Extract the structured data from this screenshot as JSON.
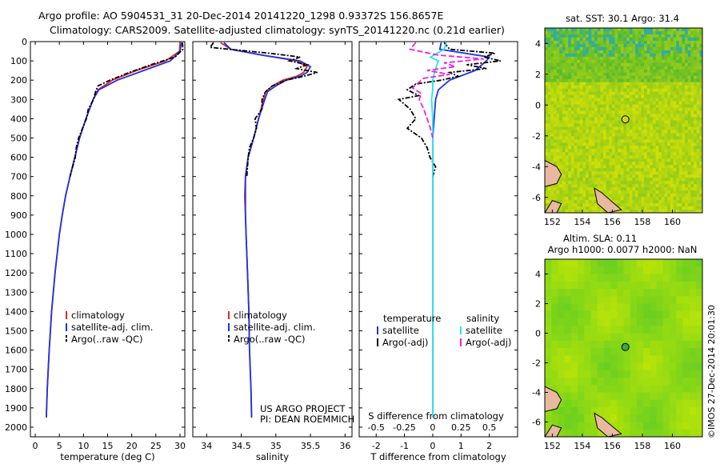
{
  "header": {
    "line1": "Argo profile: AO 5904531_31 20-Dec-2014 20141220_1298 0.93372S 156.8657E",
    "line2": "Climatology: CARS2009. Satellite-adjusted climatology: synTS_20141220.nc (0.21d earlier)"
  },
  "colors": {
    "climatology": "#e8281e",
    "satellite": "#1f32e6",
    "argo": "#000000",
    "sal_satellite": "#22e8ee",
    "sal_argo": "#ee22dd"
  },
  "chart_data": [
    {
      "type": "line",
      "id": "temperature",
      "xlabel": "temperature (deg C)",
      "ylabel": "",
      "xlim": [
        -1,
        31
      ],
      "ylim": [
        2050,
        0
      ],
      "xticks": [
        0,
        5,
        10,
        15,
        20,
        25,
        30
      ],
      "yticks": [
        0,
        100,
        200,
        300,
        400,
        500,
        600,
        700,
        800,
        900,
        1000,
        1100,
        1200,
        1300,
        1400,
        1500,
        1600,
        1700,
        1800,
        1900,
        2000
      ],
      "legend": [
        "climatology",
        "satellite-adj. clim.",
        "Argo(..raw -QC)"
      ],
      "series": [
        {
          "name": "climatology",
          "depth": [
            5,
            50,
            100,
            150,
            200,
            250,
            300,
            400,
            500,
            600,
            700,
            800,
            900,
            1000,
            1200,
            1400,
            1600,
            1800,
            1950
          ],
          "values": [
            30.0,
            29.9,
            27.0,
            21.0,
            16.0,
            13.0,
            12.0,
            10.5,
            9.2,
            8.2,
            7.2,
            6.3,
            5.6,
            5.0,
            4.1,
            3.4,
            2.9,
            2.5,
            2.3
          ]
        },
        {
          "name": "satellite-adj. clim.",
          "depth": [
            5,
            50,
            100,
            150,
            200,
            250,
            300,
            400,
            500,
            600,
            700,
            800,
            900,
            1000,
            1200,
            1400,
            1600,
            1800,
            1950
          ],
          "values": [
            30.3,
            30.0,
            28.0,
            22.5,
            17.0,
            13.2,
            12.0,
            10.5,
            9.2,
            8.2,
            7.2,
            6.3,
            5.6,
            5.0,
            4.1,
            3.4,
            2.9,
            2.5,
            2.3
          ]
        },
        {
          "name": "Argo(..raw -QC)",
          "depth": [
            5,
            40,
            80,
            120,
            160,
            200,
            230,
            260,
            300,
            350,
            400,
            450,
            500,
            550,
            600,
            700
          ],
          "values": [
            30.5,
            30.6,
            29.0,
            24.0,
            19.5,
            15.5,
            13.0,
            12.5,
            12.1,
            11.0,
            10.6,
            9.8,
            9.0,
            8.5,
            8.3,
            7.2
          ]
        }
      ]
    },
    {
      "type": "line",
      "id": "salinity",
      "xlabel": "salinity",
      "xlim": [
        33.8,
        36.1
      ],
      "ylim": [
        2050,
        0
      ],
      "xticks": [
        34,
        34.5,
        35,
        35.5,
        36
      ],
      "legend": [
        "climatology",
        "satellite-adj. clim.",
        "Argo(..raw -QC)"
      ],
      "series": [
        {
          "name": "climatology",
          "depth": [
            5,
            40,
            70,
            100,
            130,
            160,
            180,
            200,
            230,
            260,
            300,
            400,
            500,
            600,
            700,
            800,
            900,
            1000,
            1200,
            1400,
            1600,
            1800,
            1950
          ],
          "values": [
            34.2,
            34.35,
            34.8,
            35.3,
            35.45,
            35.4,
            35.3,
            35.1,
            34.95,
            34.85,
            34.82,
            34.75,
            34.68,
            34.6,
            34.56,
            34.55,
            34.56,
            34.57,
            34.59,
            34.61,
            34.62,
            34.64,
            34.65
          ]
        },
        {
          "name": "satellite-adj. clim.",
          "depth": [
            5,
            40,
            70,
            100,
            130,
            160,
            180,
            200,
            230,
            260,
            300,
            400,
            500,
            600,
            700,
            800,
            900,
            1000,
            1200,
            1400,
            1600,
            1800,
            1950
          ],
          "values": [
            34.25,
            34.35,
            34.8,
            35.35,
            35.5,
            35.45,
            35.35,
            35.15,
            35.0,
            34.88,
            34.84,
            34.75,
            34.68,
            34.6,
            34.56,
            34.56,
            34.56,
            34.57,
            34.59,
            34.61,
            34.62,
            34.64,
            34.65
          ]
        },
        {
          "name": "Argo(..raw -QC)",
          "depth": [
            5,
            30,
            60,
            80,
            100,
            120,
            140,
            160,
            180,
            200,
            230,
            260,
            300,
            350,
            400,
            450,
            500,
            550,
            600,
            700
          ],
          "values": [
            34.1,
            34.05,
            34.9,
            35.35,
            35.2,
            35.45,
            35.3,
            35.6,
            35.4,
            35.15,
            34.95,
            34.85,
            34.8,
            34.8,
            34.7,
            34.72,
            34.68,
            34.62,
            34.6,
            34.58
          ]
        }
      ],
      "annotation": [
        "US ARGO PROJECT",
        "PI: DEAN ROEMMICH"
      ]
    },
    {
      "type": "line",
      "id": "difference",
      "xlabel": "T difference from climatology",
      "xlabel_top": "S difference from climatology",
      "xlim": [
        -2.6,
        3.0
      ],
      "ylim": [
        2050,
        0
      ],
      "xticks": [
        -2,
        -1,
        0,
        1,
        2
      ],
      "xticks_top_values": [
        -0.5,
        -0.25,
        0,
        0.25,
        0.5
      ],
      "xticks_top_labels": [
        "-0.5",
        "-0.25",
        "0",
        "0.25",
        "0.5"
      ],
      "legend_groups": [
        "temperature",
        "salinity"
      ],
      "legend": [
        "satellite",
        "Argo(-adj)",
        "satellite",
        "Argo(-adj)"
      ],
      "series": [
        {
          "name": "temperature satellite",
          "depth": [
            5,
            40,
            80,
            100,
            150,
            200,
            250,
            300,
            400,
            500,
            600,
            700,
            800,
            1000,
            1200,
            1400,
            1600,
            1800,
            1950
          ],
          "values": [
            0.3,
            0.25,
            2.0,
            1.9,
            1.5,
            0.6,
            0.2,
            0.1,
            0.05,
            0.0,
            0.0,
            0.0,
            0.0,
            0.0,
            0.0,
            0.0,
            0.0,
            0.0,
            0.0
          ]
        },
        {
          "name": "temperature Argo(-adj)",
          "depth": [
            5,
            40,
            60,
            80,
            100,
            120,
            140,
            160,
            180,
            200,
            220,
            250,
            280,
            300,
            350,
            400,
            450,
            500,
            550,
            600,
            650,
            700
          ],
          "values": [
            0.4,
            0.6,
            2.2,
            1.8,
            2.4,
            1.2,
            1.9,
            0.6,
            0.9,
            0.3,
            -0.6,
            -0.9,
            -0.5,
            -1.2,
            -0.8,
            -0.6,
            -0.9,
            -0.4,
            -0.2,
            -0.1,
            0.1,
            0.0
          ]
        },
        {
          "name": "salinity satellite",
          "depth": [
            5,
            40,
            80,
            100,
            150,
            200,
            250,
            300,
            400,
            500,
            600,
            700,
            800,
            1000,
            1200,
            1400,
            1600,
            1800,
            1950
          ],
          "values": [
            0.12,
            0.1,
            -0.02,
            0.05,
            0.02,
            0.0,
            0.0,
            -0.01,
            0.0,
            0.0,
            0.0,
            0.0,
            0.0,
            0.0,
            0.0,
            0.0,
            0.0,
            0.0,
            0.0
          ]
        },
        {
          "name": "salinity Argo(-adj)",
          "depth": [
            5,
            40,
            70,
            90,
            110,
            130,
            150,
            170,
            190,
            210,
            240,
            270,
            300,
            350,
            400,
            450,
            500
          ],
          "values": [
            -0.15,
            -0.2,
            0.05,
            0.45,
            0.1,
            0.2,
            -0.05,
            0.15,
            -0.08,
            -0.12,
            -0.18,
            -0.1,
            -0.12,
            -0.08,
            -0.05,
            -0.02,
            0.0
          ]
        }
      ]
    },
    {
      "type": "heatmap",
      "id": "sst-map",
      "title": "sat. SST: 30.1  Argo: 31.4",
      "xlim": [
        151.5,
        162
      ],
      "ylim": [
        -7,
        5
      ],
      "xticks": [
        152,
        154,
        156,
        158,
        160
      ],
      "yticks": [
        -6,
        -4,
        -2,
        0,
        2,
        4
      ],
      "marker": {
        "lon": 156.8657,
        "lat": -0.93372
      }
    },
    {
      "type": "heatmap",
      "id": "sla-map",
      "title_line1": "Altim. SLA: 0.11",
      "title_line2": "Argo h1000: 0.0077 h2000: NaN",
      "xlim": [
        151.5,
        162
      ],
      "ylim": [
        -7,
        5
      ],
      "xticks": [
        152,
        154,
        156,
        158,
        160
      ],
      "yticks": [
        -6,
        -4,
        -2,
        0,
        2,
        4
      ],
      "marker": {
        "lon": 156.8657,
        "lat": -0.93372
      }
    }
  ],
  "credit": "©IMOS 27-Dec-2014 20:01:30"
}
